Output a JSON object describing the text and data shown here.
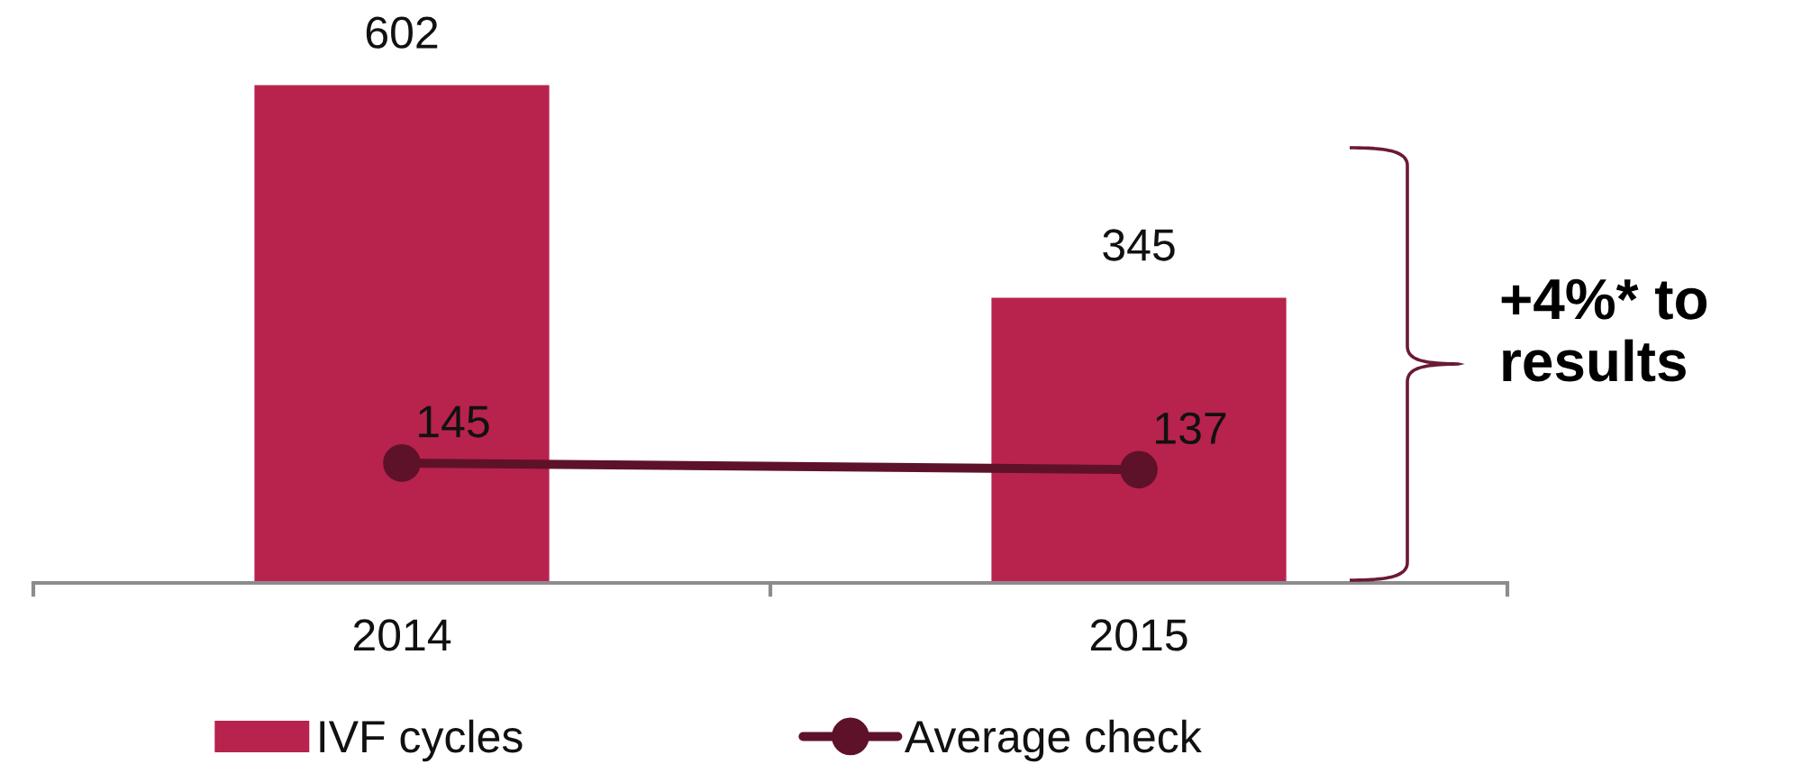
{
  "chart_data": {
    "type": "bar",
    "categories": [
      "2014",
      "2015"
    ],
    "series": [
      {
        "name": "IVF cycles",
        "color": "#b7234c",
        "values": [
          602,
          345
        ]
      },
      {
        "name": "Average check",
        "type": "line",
        "color": "#5e1229",
        "values": [
          145,
          137
        ],
        "marker": "circle"
      }
    ],
    "data_labels": true,
    "legend": "bottom",
    "tick_labels": "x",
    "annotations": [
      "+4%* to results"
    ]
  }
}
